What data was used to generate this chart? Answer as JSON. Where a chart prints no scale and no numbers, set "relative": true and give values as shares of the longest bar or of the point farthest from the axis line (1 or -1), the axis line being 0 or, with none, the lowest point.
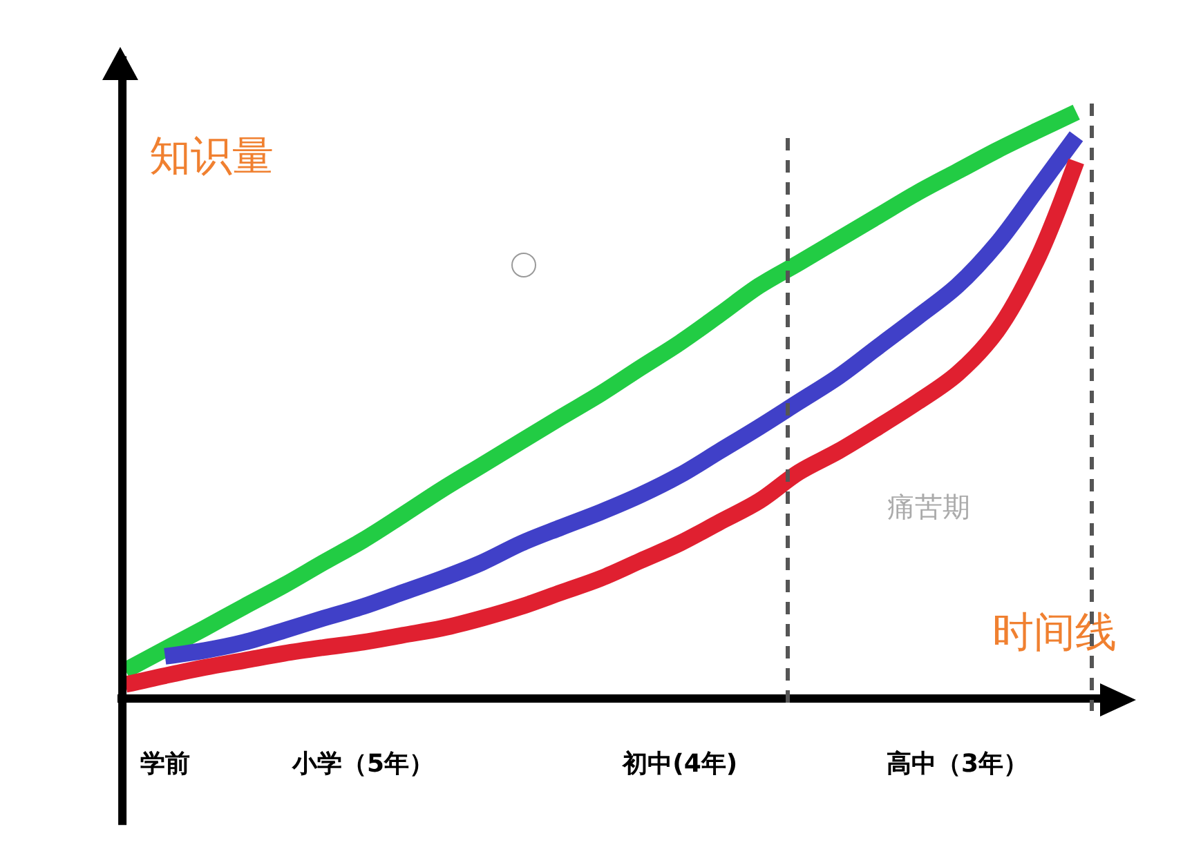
{
  "chart_data": {
    "type": "line",
    "relative": true,
    "xlabel": "时间线",
    "ylabel": "知识量",
    "categories": [
      null,
      "学前",
      null,
      null,
      null,
      null,
      "小学（5年）",
      null,
      null,
      null,
      null,
      null,
      null,
      null,
      "初中(4年)",
      null,
      null,
      null,
      null,
      null,
      null,
      "高中（3年）",
      null,
      null,
      null
    ],
    "series": [
      {
        "color": "#22cc44",
        "values": [
          0.048,
          0.084,
          0.12,
          0.157,
          0.193,
          0.232,
          0.27,
          0.313,
          0.357,
          0.398,
          0.439,
          0.48,
          0.52,
          0.564,
          0.607,
          0.655,
          0.704,
          0.743,
          0.783,
          0.823,
          0.863,
          0.899,
          0.935,
          0.968,
          1.0
        ]
      },
      {
        "color": "#4040c8",
        "values": [
          null,
          0.072,
          0.082,
          0.096,
          0.116,
          0.137,
          0.157,
          0.181,
          0.205,
          0.232,
          0.265,
          0.292,
          0.318,
          0.347,
          0.381,
          0.422,
          0.463,
          0.506,
          0.549,
          0.6,
          0.651,
          0.704,
          0.776,
          0.867,
          0.959
        ]
      },
      {
        "color": "#e02030",
        "values": [
          0.024,
          0.039,
          0.053,
          0.065,
          0.077,
          0.087,
          0.096,
          0.108,
          0.12,
          0.137,
          0.157,
          0.181,
          0.205,
          0.235,
          0.265,
          0.301,
          0.337,
          0.386,
          0.422,
          0.463,
          0.506,
          0.554,
          0.627,
          0.747,
          0.916
        ]
      }
    ],
    "annotations": [
      "痛苦期"
    ],
    "line_style": "solid",
    "marker": "none"
  }
}
